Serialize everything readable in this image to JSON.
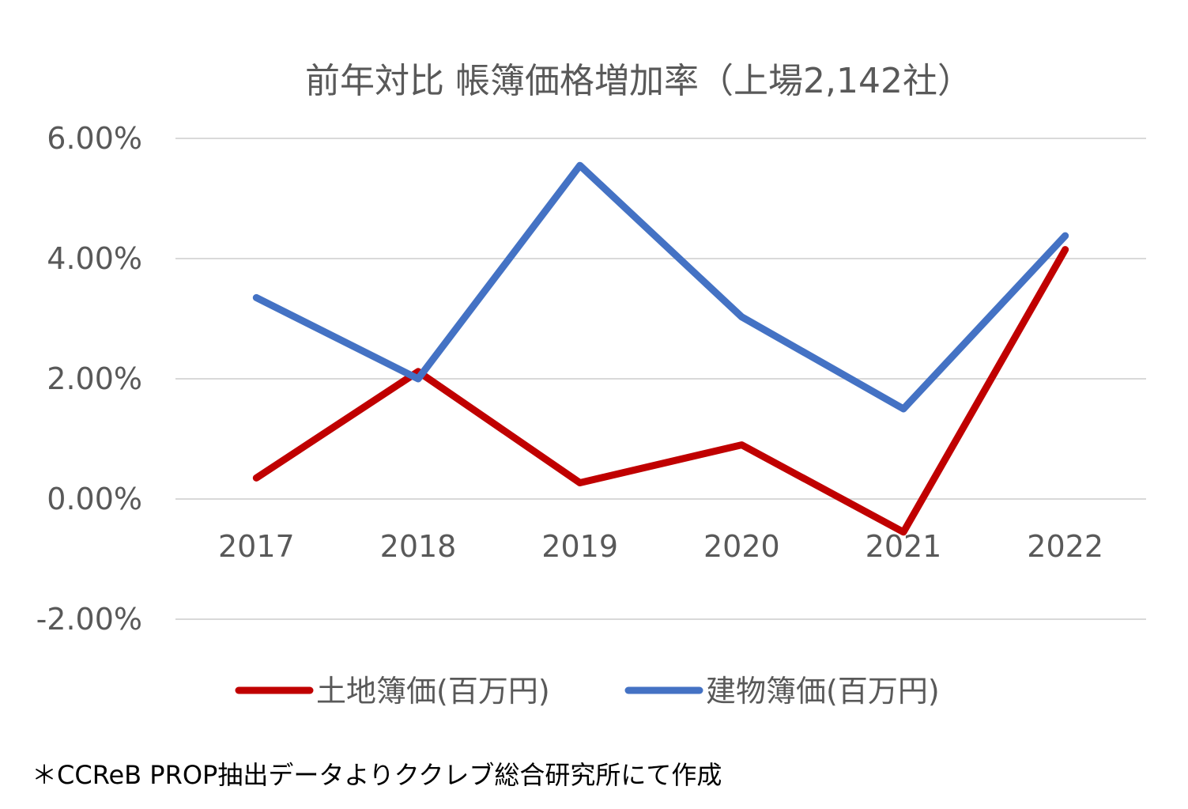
{
  "chart_data": {
    "type": "line",
    "title": "前年対比 帳簿価格増加率（上場2,142社）",
    "categories": [
      "2017",
      "2018",
      "2019",
      "2020",
      "2021",
      "2022"
    ],
    "y_ticks": [
      "6.00%",
      "4.00%",
      "2.00%",
      "0.00%",
      "-2.00%"
    ],
    "y_tick_values": [
      6,
      4,
      2,
      0,
      -2
    ],
    "ylim": [
      -2,
      6
    ],
    "grid": true,
    "legend_position": "bottom",
    "series": [
      {
        "name": "土地簿価(百万円)",
        "color": "#c00000",
        "values": [
          0.35,
          2.12,
          0.27,
          0.9,
          -0.55,
          4.15
        ]
      },
      {
        "name": "建物簿価(百万円)",
        "color": "#4472c4",
        "values": [
          3.35,
          2.0,
          5.55,
          3.03,
          1.5,
          4.38
        ]
      }
    ]
  },
  "footnote": "＊CCReB PROP抽出データよりククレブ総合研究所にて作成"
}
